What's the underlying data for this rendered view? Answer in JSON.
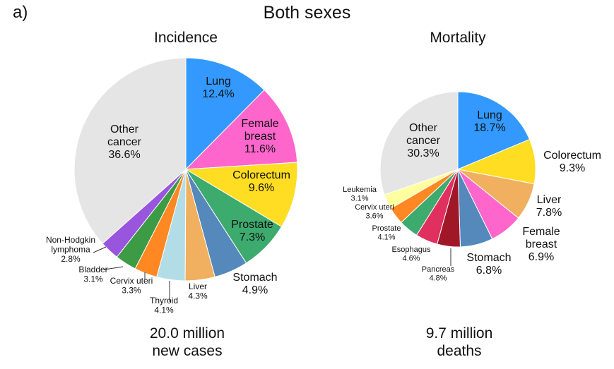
{
  "figure": {
    "panel_label": "a)",
    "title": "Both sexes"
  },
  "chart_data": [
    {
      "type": "pie",
      "title": "Incidence",
      "summary": [
        "20.0 million",
        "new cases"
      ],
      "slices": [
        {
          "label": "Lung",
          "lines": [
            "Lung",
            "12.4%"
          ],
          "value": 12.4,
          "color": "#3399ff"
        },
        {
          "label": "Female breast",
          "lines": [
            "Female",
            "breast",
            "11.6%"
          ],
          "value": 11.6,
          "color": "#ff66cc"
        },
        {
          "label": "Colorectum",
          "lines": [
            "Colorectum",
            "9.6%"
          ],
          "value": 9.6,
          "color": "#ffdd22"
        },
        {
          "label": "Prostate",
          "lines": [
            "Prostate",
            "7.3%"
          ],
          "value": 7.3,
          "color": "#3daa6e"
        },
        {
          "label": "Stomach",
          "lines": [
            "Stomach",
            "4.9%"
          ],
          "value": 4.9,
          "color": "#5588bb"
        },
        {
          "label": "Liver",
          "lines": [
            "Liver",
            "4.3%"
          ],
          "value": 4.3,
          "color": "#f0b060"
        },
        {
          "label": "Thyroid",
          "lines": [
            "Thyroid",
            "4.1%"
          ],
          "value": 4.1,
          "color": "#b3dde6"
        },
        {
          "label": "Cervix uteri",
          "lines": [
            "Cervix uteri",
            "3.3%"
          ],
          "value": 3.3,
          "color": "#ff8822"
        },
        {
          "label": "Bladder",
          "lines": [
            "Bladder",
            "3.1%"
          ],
          "value": 3.1,
          "color": "#3d9a45"
        },
        {
          "label": "Non-Hodgkin lymphoma",
          "lines": [
            "Non-Hodgkin",
            "lymphoma",
            "2.8%"
          ],
          "value": 2.8,
          "color": "#9955dd"
        },
        {
          "label": "Other cancer",
          "lines": [
            "Other",
            "cancer",
            "36.6%"
          ],
          "value": 36.6,
          "color": "#e5e5e5"
        }
      ]
    },
    {
      "type": "pie",
      "title": "Mortality",
      "summary": [
        "9.7 million",
        "deaths"
      ],
      "slices": [
        {
          "label": "Lung",
          "lines": [
            "Lung",
            "18.7%"
          ],
          "value": 18.7,
          "color": "#3399ff"
        },
        {
          "label": "Colorectum",
          "lines": [
            "Colorectum",
            "9.3%"
          ],
          "value": 9.3,
          "color": "#ffdd22"
        },
        {
          "label": "Liver",
          "lines": [
            "Liver",
            "7.8%"
          ],
          "value": 7.8,
          "color": "#f0b060"
        },
        {
          "label": "Female breast",
          "lines": [
            "Female",
            "breast",
            "6.9%"
          ],
          "value": 6.9,
          "color": "#ff66cc"
        },
        {
          "label": "Stomach",
          "lines": [
            "Stomach",
            "6.8%"
          ],
          "value": 6.8,
          "color": "#5588bb"
        },
        {
          "label": "Pancreas",
          "lines": [
            "Pancreas",
            "4.8%"
          ],
          "value": 4.8,
          "color": "#a01828"
        },
        {
          "label": "Esophagus",
          "lines": [
            "Esophagus",
            "4.6%"
          ],
          "value": 4.6,
          "color": "#e03060"
        },
        {
          "label": "Prostate",
          "lines": [
            "Prostate",
            "4.1%"
          ],
          "value": 4.1,
          "color": "#3daa6e"
        },
        {
          "label": "Cervix uteri",
          "lines": [
            "Cervix uteri",
            "3.6%"
          ],
          "value": 3.6,
          "color": "#ff8822"
        },
        {
          "label": "Leukemia",
          "lines": [
            "Leukemia",
            "3.1%"
          ],
          "value": 3.1,
          "color": "#ffffa0"
        },
        {
          "label": "Other cancer",
          "lines": [
            "Other",
            "cancer",
            "30.3%"
          ],
          "value": 30.3,
          "color": "#e5e5e5"
        }
      ]
    }
  ]
}
